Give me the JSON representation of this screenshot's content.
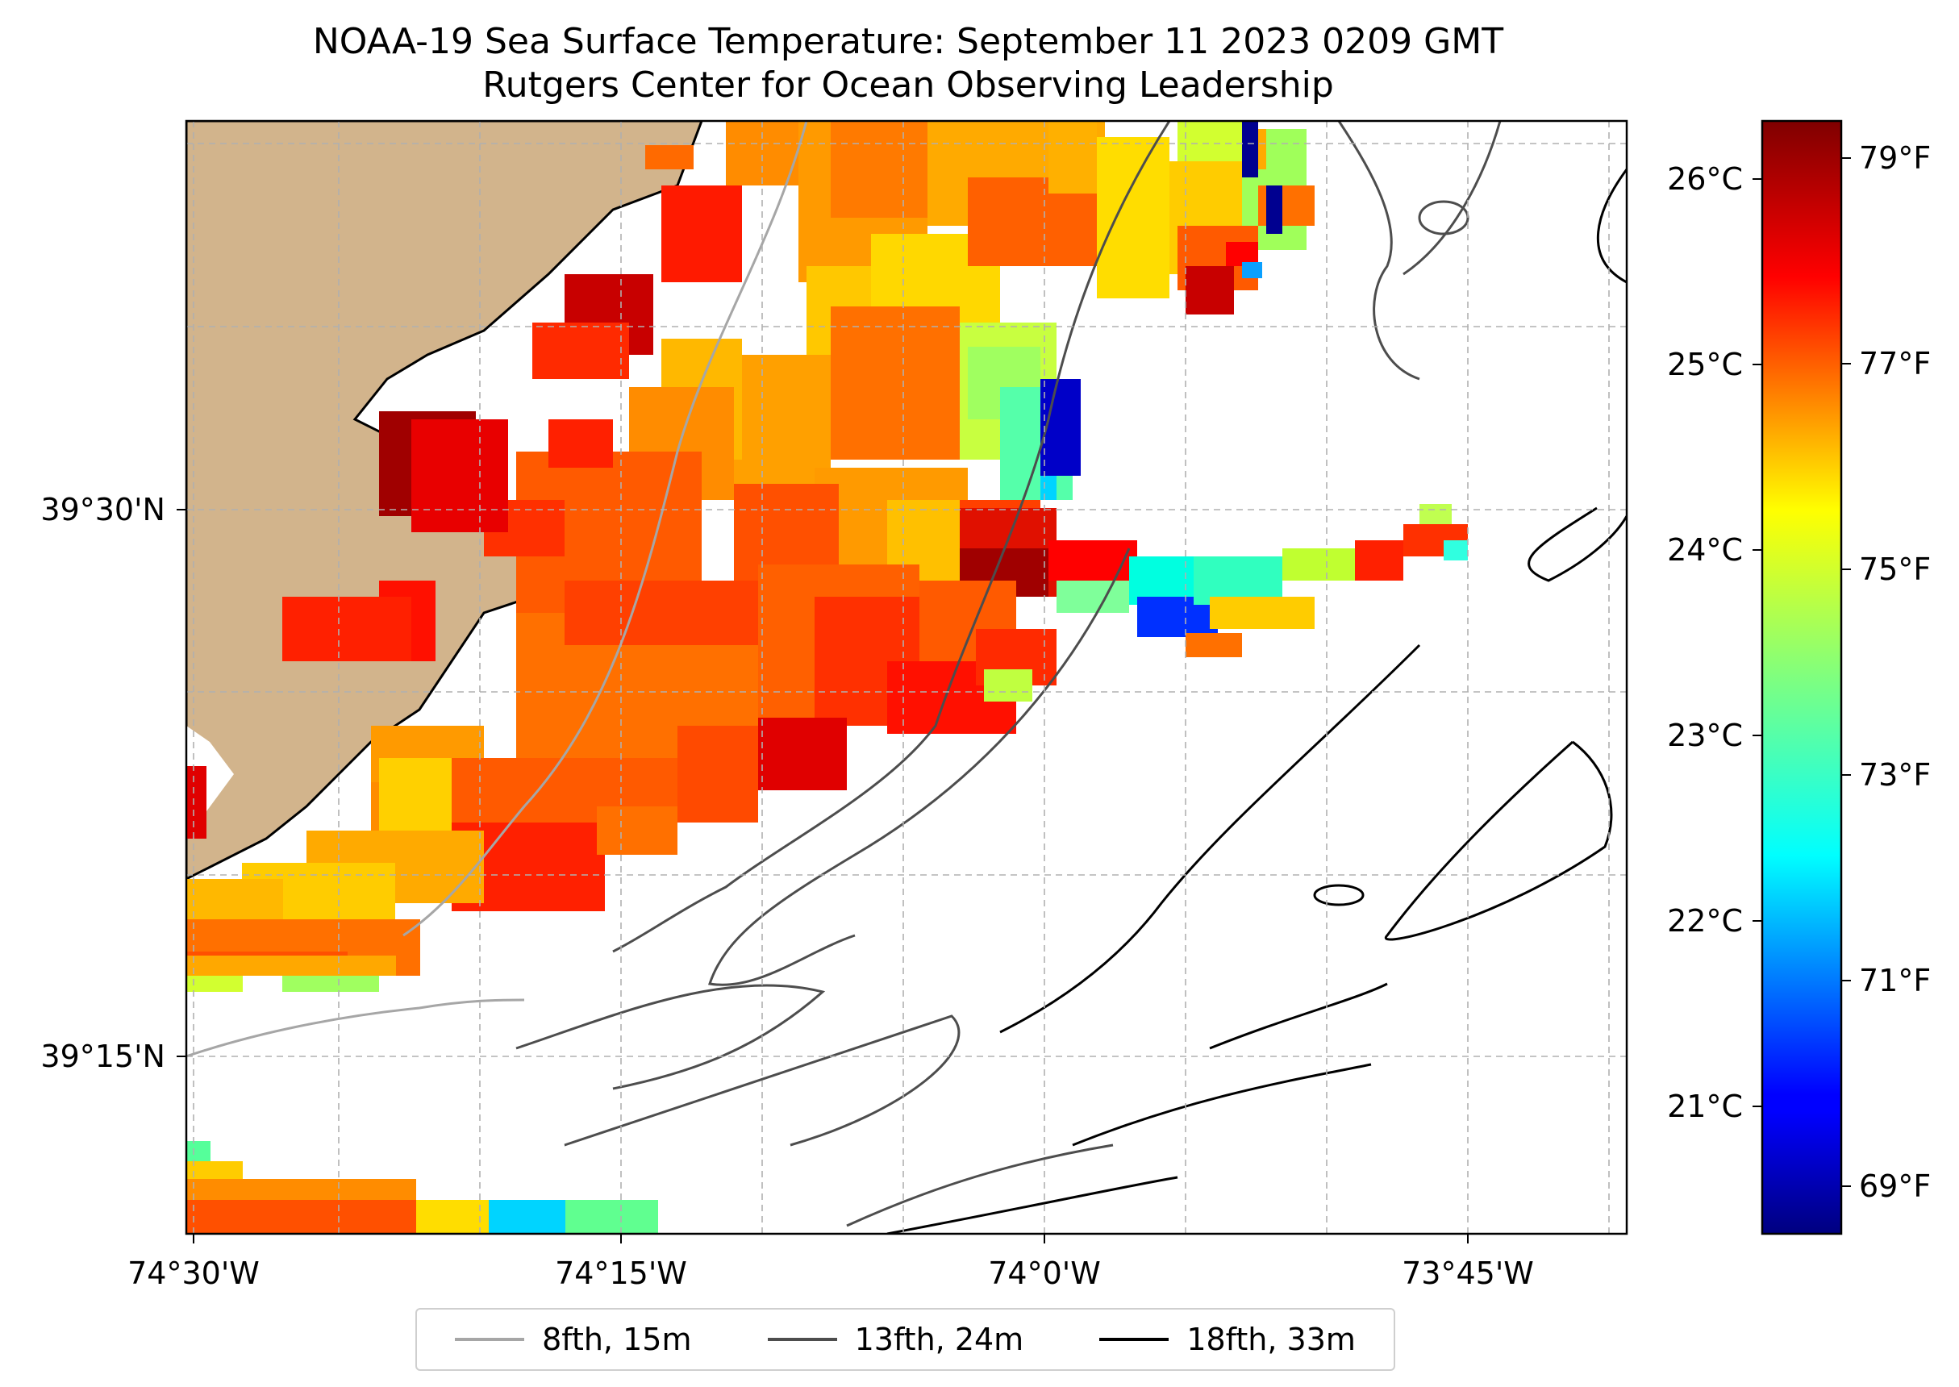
{
  "title": {
    "line1": "NOAA-19 Sea Surface Temperature: September 11 2023 0209 GMT",
    "line2": "Rutgers Center for Ocean Observing Leadership"
  },
  "axes": {
    "x_ticks": [
      "74°30'W",
      "74°15'W",
      "74°0'W",
      "73°45'W"
    ],
    "y_ticks": [
      "39°30'N",
      "39°15'N"
    ]
  },
  "colorbar": {
    "celsius_ticks": [
      "26°C",
      "25°C",
      "24°C",
      "23°C",
      "22°C",
      "21°C"
    ],
    "fahrenheit_ticks": [
      "79°F",
      "77°F",
      "75°F",
      "73°F",
      "71°F",
      "69°F"
    ]
  },
  "legend": [
    {
      "label": "8fth, 15m",
      "color": "#a6a6a6"
    },
    {
      "label": "13fth, 24m",
      "color": "#4d4d4d"
    },
    {
      "label": "18fth, 33m",
      "color": "#000000"
    }
  ],
  "colors": {
    "land": "#d2b48c",
    "grid": "#b0b0b0"
  }
}
